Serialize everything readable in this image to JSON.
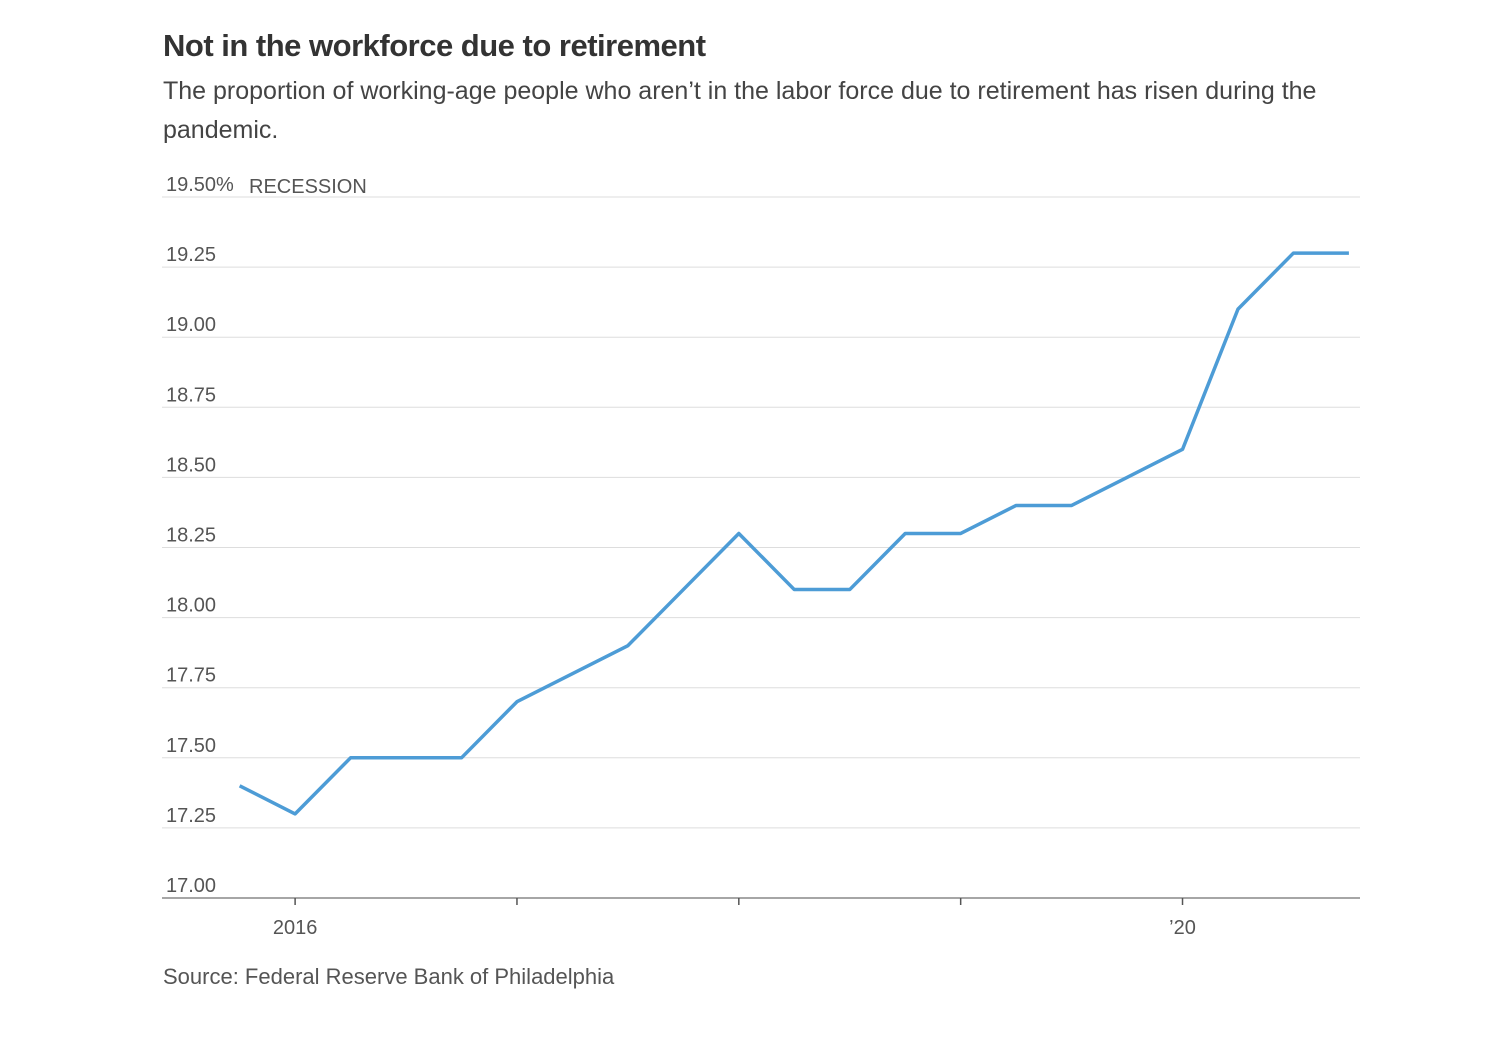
{
  "chart_data": {
    "type": "line",
    "title": "Not in the workforce due to retirement",
    "subtitle": "The proportion of working-age people who aren’t in the labor force due to retirement has risen during the pandemic.",
    "recession_label": "RECESSION",
    "source": "Source: Federal Reserve Bank of Philadelphia",
    "x": [
      2015.75,
      2016,
      2016.25,
      2016.5,
      2016.75,
      2017,
      2017.25,
      2017.5,
      2017.75,
      2018,
      2018.25,
      2018.5,
      2018.75,
      2019,
      2019.25,
      2019.5,
      2019.75,
      2020,
      2020.25,
      2020.5,
      2020.75
    ],
    "series": [
      {
        "color": "#4d9cd6",
        "values": [
          17.4,
          17.3,
          17.5,
          17.5,
          17.5,
          17.7,
          17.8,
          17.9,
          18.1,
          18.3,
          18.1,
          18.1,
          18.3,
          18.3,
          18.4,
          18.4,
          18.5,
          18.6,
          19.1,
          19.3,
          19.3
        ]
      }
    ],
    "xlim": [
      2015.4,
      2020.8
    ],
    "xticks": [
      2016,
      {
        "value": 2017,
        "label": null
      },
      {
        "value": 2018,
        "label": null
      },
      {
        "value": 2019,
        "label": null
      },
      {
        "value": 2020,
        "label": "’20"
      }
    ],
    "ylim": [
      17,
      19.5
    ],
    "yticks": [
      {
        "value": 17,
        "label": "17.00"
      },
      {
        "value": 17.25,
        "label": "17.25"
      },
      {
        "value": 17.5,
        "label": "17.50"
      },
      {
        "value": 17.75,
        "label": "17.75"
      },
      {
        "value": 18,
        "label": "18.00"
      },
      {
        "value": 18.25,
        "label": "18.25"
      },
      {
        "value": 18.5,
        "label": "18.50"
      },
      {
        "value": 18.75,
        "label": "18.75"
      },
      {
        "value": 19,
        "label": "19.00"
      },
      {
        "value": 19.25,
        "label": "19.25"
      },
      {
        "value": 19.5,
        "label": "19.50%"
      }
    ],
    "grid": true
  }
}
